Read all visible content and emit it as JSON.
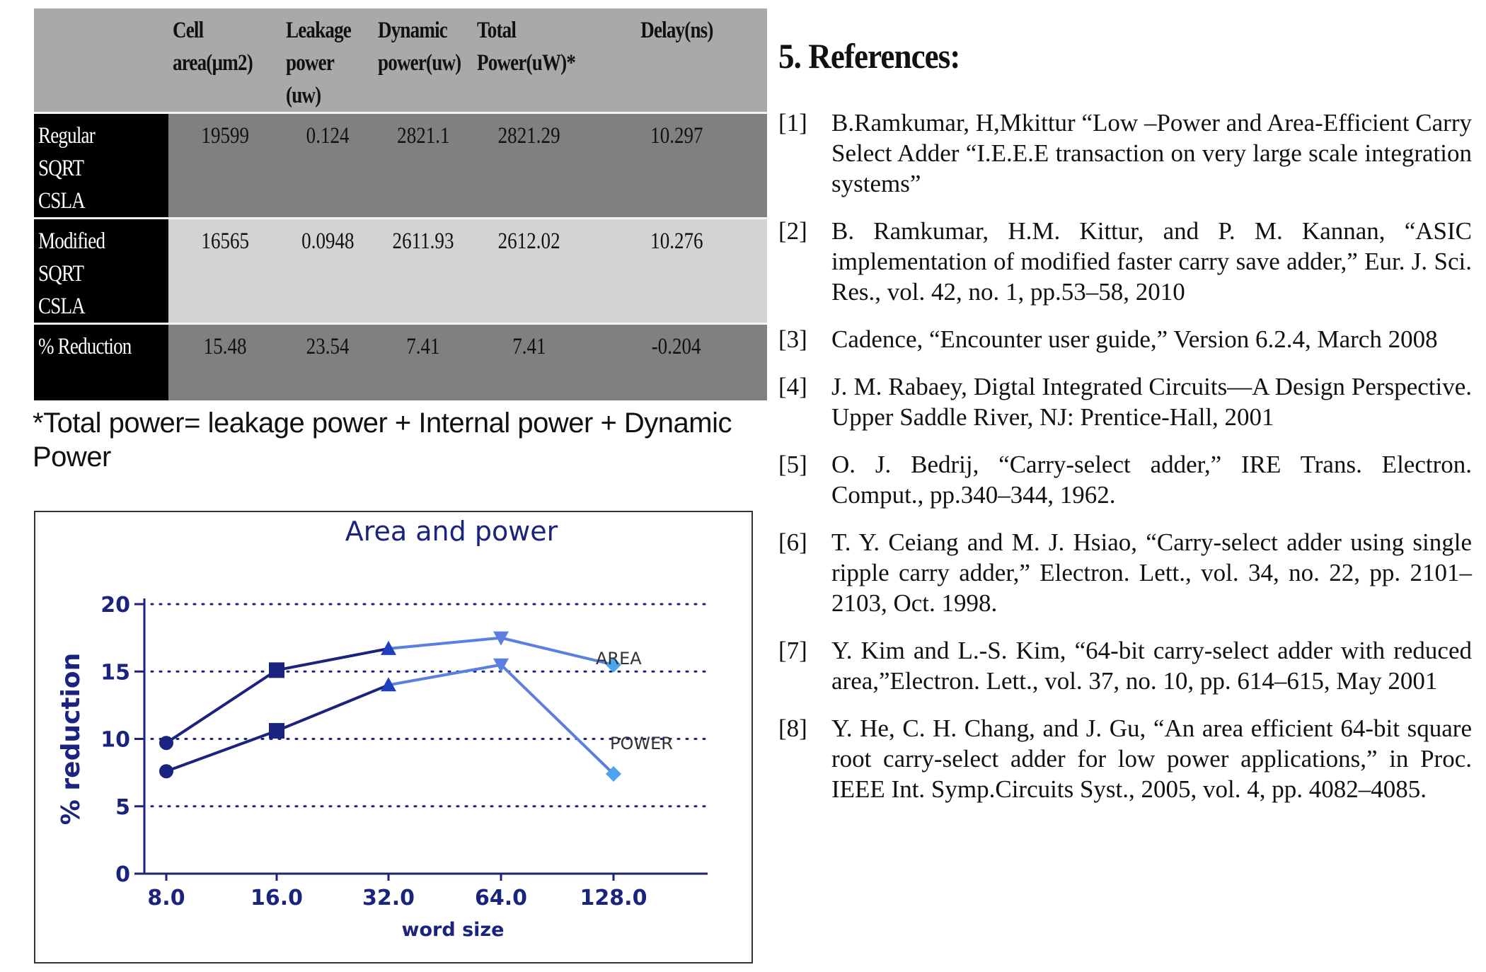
{
  "table": {
    "headers": [
      "",
      "Cell\narea(µm2)",
      "Leakage\npower\n(uw)",
      "Dynamic\npower(uw)",
      "Total\nPower(uW)*",
      "Delay(ns)"
    ],
    "rows": [
      {
        "label": "Regular SQRT\nCSLA",
        "values": [
          "19599",
          "0.124",
          "2821.1",
          "2821.29",
          "10.297"
        ]
      },
      {
        "label": "Modified SQRT\nCSLA",
        "values": [
          "16565",
          "0.0948",
          "2611.93",
          "2612.02",
          "10.276"
        ]
      },
      {
        "label": "% Reduction",
        "values": [
          "15.48",
          "23.54",
          "7.41",
          "7.41",
          "-0.204"
        ]
      }
    ]
  },
  "footnote": "*Total power= leakage power + Internal power + Dynamic Power",
  "chart_data": {
    "type": "line",
    "title": "Area and power",
    "xlabel": "word size",
    "ylabel": "% reduction",
    "categories": [
      "8.0",
      "16.0",
      "32.0",
      "64.0",
      "128.0"
    ],
    "ylim": [
      0,
      20
    ],
    "yticks": [
      "0",
      "5",
      "10",
      "15",
      "20"
    ],
    "grid": "horizontal-dotted",
    "series": [
      {
        "name": "AREA",
        "values": [
          9.7,
          15.1,
          16.7,
          17.5,
          15.5
        ]
      },
      {
        "name": "POWER",
        "values": [
          7.6,
          10.6,
          14.0,
          15.5,
          7.4
        ]
      }
    ],
    "colors": {
      "line_dark": "#1a237e",
      "line_light": "#5b7fe0",
      "marker_light": "#4da3f0",
      "axis": "#1a237e",
      "grid": "#1a237e"
    }
  },
  "references": {
    "heading": "5. References:",
    "items": [
      {
        "num": "[1]",
        "text": "B.Ramkumar, H,Mkittur “Low –Power and Area-Efficient Carry Select Adder “I.E.E.E transaction on very large scale integration systems”"
      },
      {
        "num": "[2]",
        "text": "B. Ramkumar, H.M. Kittur, and P. M. Kannan, “ASIC implementation of modified faster carry save adder,” Eur. J. Sci. Res., vol. 42, no. 1, pp.53–58, 2010"
      },
      {
        "num": "[3]",
        "text": "Cadence, “Encounter user guide,” Version 6.2.4, March 2008"
      },
      {
        "num": "[4]",
        "text": "J. M. Rabaey, Digtal Integrated Circuits—A Design Perspective. Upper Saddle River, NJ: Prentice-Hall, 2001"
      },
      {
        "num": "[5]",
        "text": "O. J. Bedrij, “Carry-select adder,” IRE Trans. Electron. Comput., pp.340–344, 1962."
      },
      {
        "num": "[6]",
        "text": "T. Y. Ceiang and M. J. Hsiao, “Carry-select adder using single ripple carry adder,” Electron. Lett., vol. 34, no. 22, pp. 2101–2103, Oct. 1998."
      },
      {
        "num": "[7]",
        "text": "Y. Kim and L.-S. Kim, “64-bit carry-select adder with reduced area,”Electron. Lett., vol. 37, no. 10, pp. 614–615, May 2001"
      },
      {
        "num": "[8]",
        "text": "Y. He, C. H. Chang, and J. Gu, “An area efficient 64-bit square root carry-select adder for low power applications,” in Proc. IEEE Int. Symp.Circuits Syst., 2005, vol. 4, pp. 4082–4085."
      }
    ]
  }
}
